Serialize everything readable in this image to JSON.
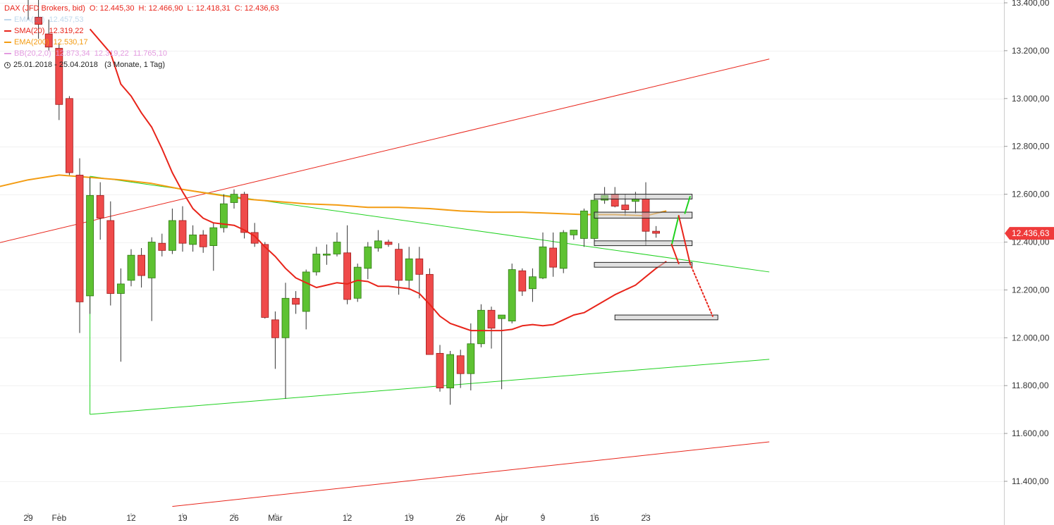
{
  "legend": {
    "instrument": "DAX (JFD Brokers, bid)",
    "ohlc": {
      "o_label": "O:",
      "o": "12.445,30",
      "h_label": "H:",
      "h": "12.466,90",
      "l_label": "L:",
      "l": "12.418,31",
      "c_label": "C:",
      "c": "12.436,63"
    },
    "ema10": {
      "label": "EMA(10)",
      "value": "12.457,53",
      "color": "#9ec5e8"
    },
    "sma20": {
      "label": "SMA(20)",
      "value": "12.319,22",
      "color": "#e8241a"
    },
    "ema200": {
      "label": "EMA(200)",
      "value": "12.530,17",
      "color": "#f39c12"
    },
    "bb": {
      "label": "BB(20,2,0)",
      "v1": "12.873,34",
      "v2": "12.319,22",
      "v3": "11.765,10",
      "color": "#e39be0"
    },
    "range": "25.01.2018 - 25.04.2018",
    "period": "(3 Monate, 1 Tag)"
  },
  "chart_data": {
    "type": "candlestick",
    "instrument": "DAX (JFD Brokers, bid)",
    "last_price_label": "12.436,63",
    "last_price": 12436.63,
    "ylim": [
      11300,
      13420
    ],
    "y_ticks": [
      11400,
      11600,
      11800,
      12000,
      12200,
      12400,
      12600,
      12800,
      13000,
      13200,
      13400
    ],
    "y_tick_labels": [
      "11.400,00",
      "11.600,00",
      "11.800,00",
      "12.000,00",
      "12.200,00",
      "12.400,00",
      "12.600,00",
      "12.800,00",
      "13.000,00",
      "13.200,00",
      "13.400,00"
    ],
    "x_ticks": [
      {
        "label": "29",
        "index": 0
      },
      {
        "label": "Feb",
        "index": 3
      },
      {
        "label": "12",
        "index": 10
      },
      {
        "label": "19",
        "index": 15
      },
      {
        "label": "26",
        "index": 20
      },
      {
        "label": "Mär",
        "index": 24
      },
      {
        "label": "12",
        "index": 31
      },
      {
        "label": "19",
        "index": 37
      },
      {
        "label": "26",
        "index": 42
      },
      {
        "label": "Apr",
        "index": 46
      },
      {
        "label": "9",
        "index": 50
      },
      {
        "label": "16",
        "index": 55
      },
      {
        "label": "23",
        "index": 60
      }
    ],
    "candles": [
      {
        "o": 13500,
        "h": 13560,
        "l": 13330,
        "c": 13440
      },
      {
        "o": 13340,
        "h": 13420,
        "l": 13250,
        "c": 13310
      },
      {
        "o": 13270,
        "h": 13330,
        "l": 13200,
        "c": 13215
      },
      {
        "o": 13210,
        "h": 13230,
        "l": 12910,
        "c": 12975
      },
      {
        "o": 13000,
        "h": 13010,
        "l": 12680,
        "c": 12690
      },
      {
        "o": 12680,
        "h": 12750,
        "l": 12020,
        "c": 12150
      },
      {
        "o": 12175,
        "h": 12670,
        "l": 12100,
        "c": 12595
      },
      {
        "o": 12595,
        "h": 12650,
        "l": 12410,
        "c": 12500
      },
      {
        "o": 12490,
        "h": 12570,
        "l": 12135,
        "c": 12185
      },
      {
        "o": 12185,
        "h": 12290,
        "l": 11900,
        "c": 12225
      },
      {
        "o": 12240,
        "h": 12370,
        "l": 12215,
        "c": 12345
      },
      {
        "o": 12345,
        "h": 12375,
        "l": 12210,
        "c": 12260
      },
      {
        "o": 12250,
        "h": 12420,
        "l": 12070,
        "c": 12400
      },
      {
        "o": 12395,
        "h": 12435,
        "l": 12340,
        "c": 12365
      },
      {
        "o": 12365,
        "h": 12540,
        "l": 12350,
        "c": 12490
      },
      {
        "o": 12490,
        "h": 12550,
        "l": 12360,
        "c": 12395
      },
      {
        "o": 12390,
        "h": 12470,
        "l": 12360,
        "c": 12430
      },
      {
        "o": 12430,
        "h": 12450,
        "l": 12355,
        "c": 12380
      },
      {
        "o": 12385,
        "h": 12480,
        "l": 12280,
        "c": 12460
      },
      {
        "o": 12460,
        "h": 12600,
        "l": 12440,
        "c": 12560
      },
      {
        "o": 12565,
        "h": 12620,
        "l": 12540,
        "c": 12600
      },
      {
        "o": 12600,
        "h": 12610,
        "l": 12415,
        "c": 12440
      },
      {
        "o": 12440,
        "h": 12480,
        "l": 12380,
        "c": 12395
      },
      {
        "o": 12390,
        "h": 12400,
        "l": 12080,
        "c": 12085
      },
      {
        "o": 12075,
        "h": 12110,
        "l": 11870,
        "c": 12000
      },
      {
        "o": 12000,
        "h": 12230,
        "l": 11745,
        "c": 12165
      },
      {
        "o": 12165,
        "h": 12195,
        "l": 12100,
        "c": 12140
      },
      {
        "o": 12110,
        "h": 12285,
        "l": 12035,
        "c": 12275
      },
      {
        "o": 12275,
        "h": 12380,
        "l": 12260,
        "c": 12350
      },
      {
        "o": 12345,
        "h": 12390,
        "l": 12305,
        "c": 12350
      },
      {
        "o": 12350,
        "h": 12440,
        "l": 12340,
        "c": 12400
      },
      {
        "o": 12355,
        "h": 12470,
        "l": 12140,
        "c": 12160
      },
      {
        "o": 12165,
        "h": 12310,
        "l": 12150,
        "c": 12295
      },
      {
        "o": 12290,
        "h": 12400,
        "l": 12245,
        "c": 12380
      },
      {
        "o": 12375,
        "h": 12450,
        "l": 12360,
        "c": 12405
      },
      {
        "o": 12400,
        "h": 12410,
        "l": 12380,
        "c": 12390
      },
      {
        "o": 12370,
        "h": 12395,
        "l": 12180,
        "c": 12240
      },
      {
        "o": 12240,
        "h": 12380,
        "l": 12200,
        "c": 12330
      },
      {
        "o": 12330,
        "h": 12380,
        "l": 12165,
        "c": 12265
      },
      {
        "o": 12265,
        "h": 12290,
        "l": 11940,
        "c": 11930
      },
      {
        "o": 11935,
        "h": 11970,
        "l": 11775,
        "c": 11790
      },
      {
        "o": 11790,
        "h": 11945,
        "l": 11720,
        "c": 11930
      },
      {
        "o": 11925,
        "h": 11950,
        "l": 11790,
        "c": 11850
      },
      {
        "o": 11850,
        "h": 12060,
        "l": 11780,
        "c": 11975
      },
      {
        "o": 11975,
        "h": 12140,
        "l": 11960,
        "c": 12115
      },
      {
        "o": 12115,
        "h": 12130,
        "l": 11955,
        "c": 12040
      },
      {
        "o": 12080,
        "h": 12085,
        "l": 11785,
        "c": 12095
      },
      {
        "o": 12070,
        "h": 12310,
        "l": 12060,
        "c": 12285
      },
      {
        "o": 12280,
        "h": 12290,
        "l": 12175,
        "c": 12195
      },
      {
        "o": 12205,
        "h": 12290,
        "l": 12150,
        "c": 12255
      },
      {
        "o": 12250,
        "h": 12440,
        "l": 12245,
        "c": 12380
      },
      {
        "o": 12375,
        "h": 12440,
        "l": 12255,
        "c": 12295
      },
      {
        "o": 12290,
        "h": 12450,
        "l": 12270,
        "c": 12440
      },
      {
        "o": 12430,
        "h": 12450,
        "l": 12410,
        "c": 12450
      },
      {
        "o": 12415,
        "h": 12540,
        "l": 12380,
        "c": 12530
      },
      {
        "o": 12415,
        "h": 12595,
        "l": 12405,
        "c": 12575
      },
      {
        "o": 12575,
        "h": 12630,
        "l": 12560,
        "c": 12595
      },
      {
        "o": 12600,
        "h": 12630,
        "l": 12545,
        "c": 12550
      },
      {
        "o": 12555,
        "h": 12600,
        "l": 12510,
        "c": 12535
      },
      {
        "o": 12570,
        "h": 12610,
        "l": 12520,
        "c": 12580
      },
      {
        "o": 12580,
        "h": 12650,
        "l": 12385,
        "c": 12445
      },
      {
        "o": 12445.3,
        "h": 12466.9,
        "l": 12418.31,
        "c": 12436.63
      }
    ],
    "sma20": [
      [
        6,
        13290
      ],
      [
        8,
        13190
      ],
      [
        9,
        13060
      ],
      [
        10,
        13010
      ],
      [
        11,
        12940
      ],
      [
        12,
        12880
      ],
      [
        13,
        12790
      ],
      [
        14,
        12690
      ],
      [
        15,
        12610
      ],
      [
        16,
        12540
      ],
      [
        17,
        12500
      ],
      [
        18,
        12480
      ],
      [
        19,
        12475
      ],
      [
        20,
        12470
      ],
      [
        21,
        12450
      ],
      [
        22,
        12425
      ],
      [
        23,
        12380
      ],
      [
        24,
        12340
      ],
      [
        25,
        12290
      ],
      [
        26,
        12250
      ],
      [
        27,
        12230
      ],
      [
        28,
        12210
      ],
      [
        29,
        12220
      ],
      [
        30,
        12230
      ],
      [
        31,
        12225
      ],
      [
        32,
        12240
      ],
      [
        33,
        12235
      ],
      [
        34,
        12215
      ],
      [
        35,
        12215
      ],
      [
        36,
        12210
      ],
      [
        37,
        12205
      ],
      [
        38,
        12185
      ],
      [
        39,
        12140
      ],
      [
        40,
        12090
      ],
      [
        41,
        12060
      ],
      [
        42,
        12045
      ],
      [
        43,
        12030
      ],
      [
        44,
        12030
      ],
      [
        45,
        12030
      ],
      [
        46,
        12030
      ],
      [
        47,
        12035
      ],
      [
        48,
        12050
      ],
      [
        49,
        12055
      ],
      [
        50,
        12050
      ],
      [
        51,
        12055
      ],
      [
        52,
        12075
      ],
      [
        53,
        12095
      ],
      [
        54,
        12105
      ],
      [
        55,
        12130
      ],
      [
        56,
        12155
      ],
      [
        57,
        12180
      ],
      [
        58,
        12200
      ],
      [
        59,
        12220
      ],
      [
        60,
        12255
      ],
      [
        61,
        12290
      ],
      [
        62,
        12319.22
      ]
    ],
    "ema200": [
      [
        -3,
        12630
      ],
      [
        0,
        12660
      ],
      [
        3,
        12680
      ],
      [
        6,
        12670
      ],
      [
        9,
        12660
      ],
      [
        12,
        12645
      ],
      [
        15,
        12620
      ],
      [
        18,
        12600
      ],
      [
        21,
        12580
      ],
      [
        24,
        12570
      ],
      [
        27,
        12560
      ],
      [
        30,
        12555
      ],
      [
        33,
        12545
      ],
      [
        36,
        12545
      ],
      [
        39,
        12540
      ],
      [
        42,
        12530
      ],
      [
        45,
        12525
      ],
      [
        48,
        12525
      ],
      [
        51,
        12520
      ],
      [
        54,
        12515
      ],
      [
        57,
        12515
      ],
      [
        60,
        12510
      ],
      [
        62,
        12530.17
      ]
    ],
    "trendlines": [
      {
        "color": "#e8241a",
        "points": [
          [
            -3,
            12395
          ],
          [
            72,
            13165
          ]
        ]
      },
      {
        "color": "#e8241a",
        "points": [
          [
            14,
            11295
          ],
          [
            72,
            11565
          ]
        ]
      },
      {
        "color": "#1fd11f",
        "points": [
          [
            6,
            11680
          ],
          [
            72,
            11910
          ]
        ]
      },
      {
        "color": "#1fd11f",
        "points": [
          [
            6,
            12675
          ],
          [
            72,
            12275
          ]
        ]
      }
    ],
    "zones": [
      {
        "x0": 55,
        "x1": 64.5,
        "y0": 12580,
        "y1": 12600
      },
      {
        "x0": 55,
        "x1": 64.5,
        "y0": 12500,
        "y1": 12525
      },
      {
        "x0": 55,
        "x1": 64.5,
        "y0": 12385,
        "y1": 12405
      },
      {
        "x0": 55,
        "x1": 64.5,
        "y0": 12295,
        "y1": 12315
      },
      {
        "x0": 57,
        "x1": 67,
        "y0": 12075,
        "y1": 12095
      }
    ],
    "projections": [
      {
        "color": "#1fd11f",
        "dashed": false,
        "points": [
          [
            62.5,
            12385
          ],
          [
            63.2,
            12510
          ]
        ]
      },
      {
        "color": "#1fd11f",
        "dashed": false,
        "points": [
          [
            63.8,
            12520
          ],
          [
            64.3,
            12590
          ]
        ]
      },
      {
        "color": "#e8241a",
        "dashed": false,
        "points": [
          [
            62.5,
            12390
          ],
          [
            63.2,
            12310
          ]
        ]
      },
      {
        "color": "#e8241a",
        "dashed": false,
        "points": [
          [
            63.2,
            12510
          ],
          [
            64.3,
            12310
          ]
        ]
      },
      {
        "color": "#e8241a",
        "dashed": true,
        "points": [
          [
            64.3,
            12310
          ],
          [
            66.5,
            12090
          ]
        ]
      }
    ]
  }
}
